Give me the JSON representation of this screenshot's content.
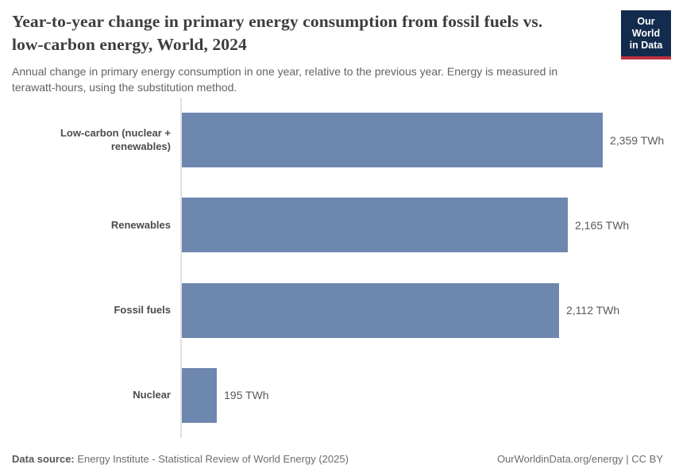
{
  "chart_data": {
    "type": "bar",
    "orientation": "horizontal",
    "title": "Year-to-year change in primary energy consumption from fossil fuels vs. low-carbon energy, World, 2024",
    "subtitle": "Annual change in primary energy consumption in one year, relative to the previous year. Energy is measured in terawatt-hours, using the substitution method.",
    "categories": [
      "Low-carbon (nuclear + renewables)",
      "Renewables",
      "Fossil fuels",
      "Nuclear"
    ],
    "values": [
      2359,
      2165,
      2112,
      195
    ],
    "value_labels": [
      "2,359 TWh",
      "2,165 TWh",
      "2,112 TWh",
      "195 TWh"
    ],
    "unit": "TWh",
    "xlim": [
      0,
      2359
    ],
    "grid": false,
    "legend": false,
    "bar_color": "#6d87ae",
    "axis_color": "#e2e2e2"
  },
  "logo": {
    "line1": "Our World",
    "line2": "in Data",
    "bg_color": "#132c4d",
    "accent_color": "#c0303f"
  },
  "footer": {
    "data_source_label": "Data source:",
    "data_source_text": "Energy Institute - Statistical Review of World Energy (2025)",
    "attribution": "OurWorldinData.org/energy | CC BY"
  }
}
